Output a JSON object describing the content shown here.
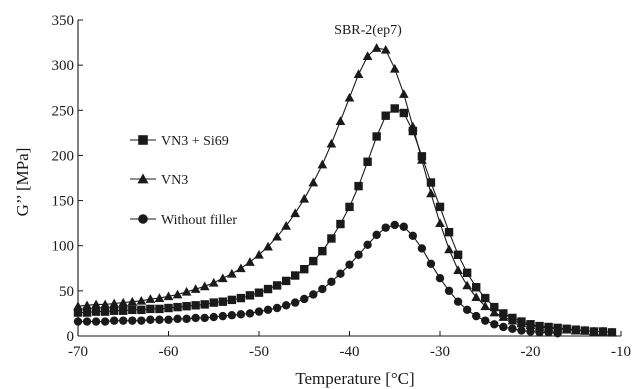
{
  "chart_data": {
    "type": "line",
    "title": "SBR-2(ep7)",
    "xlabel": "Temperature [°C]",
    "ylabel": "G’’ [MPa]",
    "xlim": [
      -70,
      -10
    ],
    "ylim": [
      0,
      350
    ],
    "xticks": [
      -70,
      -60,
      -50,
      -40,
      -30,
      -20,
      -10
    ],
    "yticks": [
      0,
      50,
      100,
      150,
      200,
      250,
      300,
      350
    ],
    "grid": false,
    "legend_position": "left",
    "series": [
      {
        "name": "VN3 + Si69",
        "marker": "square",
        "x": [
          -70,
          -69,
          -68,
          -67,
          -66,
          -65,
          -64,
          -63,
          -62,
          -61,
          -60,
          -59,
          -58,
          -57,
          -56,
          -55,
          -54,
          -53,
          -52,
          -51,
          -50,
          -49,
          -48,
          -47,
          -46,
          -45,
          -44,
          -43,
          -42,
          -41,
          -40,
          -39,
          -38,
          -37,
          -36,
          -35,
          -34,
          -33,
          -32,
          -31,
          -30,
          -29,
          -28,
          -27,
          -26,
          -25,
          -24,
          -23,
          -22,
          -21,
          -20,
          -19,
          -18,
          -17,
          -16,
          -15,
          -14,
          -13,
          -12,
          -11
        ],
        "y": [
          26,
          26,
          27,
          27,
          28,
          28,
          29,
          29,
          30,
          30,
          31,
          32,
          33,
          34,
          35,
          37,
          38,
          40,
          42,
          45,
          48,
          52,
          56,
          61,
          67,
          74,
          83,
          94,
          108,
          124,
          143,
          166,
          193,
          221,
          244,
          252,
          247,
          227,
          199,
          170,
          143,
          115,
          90,
          70,
          54,
          42,
          32,
          25,
          20,
          16,
          13,
          11,
          10,
          9,
          8,
          7,
          6,
          5,
          5,
          4
        ]
      },
      {
        "name": "VN3",
        "marker": "triangle",
        "x": [
          -70,
          -69,
          -68,
          -67,
          -66,
          -65,
          -64,
          -63,
          -62,
          -61,
          -60,
          -59,
          -58,
          -57,
          -56,
          -55,
          -54,
          -53,
          -52,
          -51,
          -50,
          -49,
          -48,
          -47,
          -46,
          -45,
          -44,
          -43,
          -42,
          -41,
          -40,
          -39,
          -38,
          -37,
          -36,
          -35,
          -34,
          -33,
          -32,
          -31,
          -30,
          -29,
          -28,
          -27,
          -26,
          -25,
          -24,
          -23,
          -22,
          -21,
          -20,
          -19,
          -18,
          -17,
          -16,
          -15,
          -14,
          -13,
          -12,
          -11
        ],
        "y": [
          33,
          34,
          35,
          35,
          36,
          37,
          38,
          39,
          41,
          42,
          44,
          46,
          49,
          52,
          55,
          59,
          64,
          69,
          75,
          82,
          90,
          99,
          110,
          122,
          136,
          152,
          170,
          190,
          213,
          238,
          264,
          290,
          310,
          319,
          317,
          296,
          268,
          232,
          195,
          158,
          125,
          96,
          73,
          56,
          43,
          33,
          26,
          21,
          17,
          14,
          12,
          10,
          9,
          8,
          7,
          6,
          6,
          5,
          5,
          4
        ]
      },
      {
        "name": "Without filler",
        "marker": "circle",
        "x": [
          -70,
          -69,
          -68,
          -67,
          -66,
          -65,
          -64,
          -63,
          -62,
          -61,
          -60,
          -59,
          -58,
          -57,
          -56,
          -55,
          -54,
          -53,
          -52,
          -51,
          -50,
          -49,
          -48,
          -47,
          -46,
          -45,
          -44,
          -43,
          -42,
          -41,
          -40,
          -39,
          -38,
          -37,
          -36,
          -35,
          -34,
          -33,
          -32,
          -31,
          -30,
          -29,
          -28,
          -27,
          -26,
          -25,
          -24,
          -23,
          -22,
          -21,
          -20,
          -19,
          -18,
          -17
        ],
        "y": [
          16,
          16,
          16,
          16,
          17,
          17,
          17,
          17,
          18,
          18,
          18,
          19,
          19,
          20,
          20,
          21,
          22,
          23,
          24,
          25,
          27,
          29,
          31,
          34,
          37,
          41,
          46,
          52,
          60,
          69,
          79,
          90,
          101,
          112,
          120,
          123,
          121,
          111,
          97,
          80,
          64,
          50,
          38,
          29,
          22,
          17,
          13,
          10,
          8,
          6,
          5,
          4,
          4,
          3
        ]
      }
    ]
  }
}
